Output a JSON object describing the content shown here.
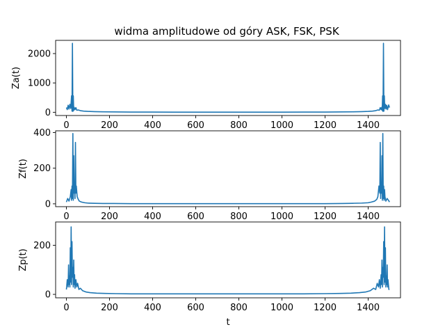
{
  "chart_data": {
    "type": "line",
    "title": "widma amplitudowe od góry ASK, FSK, PSK",
    "xlabel": "t",
    "line_color": "#1f77b4",
    "subplots": [
      {
        "ylabel": "Za(t)",
        "xlim": [
          -50,
          1550
        ],
        "ylim": [
          -110,
          2450
        ],
        "xticks": [
          0,
          200,
          400,
          600,
          800,
          1000,
          1200,
          1400
        ],
        "yticks": [
          0,
          1000,
          2000
        ],
        "show_xtick_labels": true,
        "series": [
          {
            "x": [
              0,
              4,
              8,
              12,
              16,
              20,
              24,
              26,
              28,
              30,
              32,
              34,
              36,
              40,
              44,
              48,
              55,
              65,
              80,
              100,
              130,
              170,
              220,
              300,
              400,
              500,
              600,
              700,
              750,
              800,
              900,
              1000,
              1100,
              1200,
              1280,
              1330,
              1370,
              1400,
              1420,
              1435,
              1445,
              1452,
              1456,
              1460,
              1463,
              1465,
              1467,
              1469,
              1471,
              1473,
              1475,
              1477,
              1480,
              1483,
              1486,
              1490,
              1495,
              1499
            ],
            "y": [
              160,
              90,
              240,
              110,
              270,
              130,
              560,
              40,
              2350,
              30,
              560,
              60,
              170,
              90,
              160,
              70,
              80,
              55,
              40,
              30,
              22,
              16,
              12,
              8,
              6,
              5,
              5,
              5,
              5,
              5,
              5,
              5,
              6,
              8,
              12,
              16,
              22,
              30,
              40,
              55,
              80,
              70,
              160,
              90,
              170,
              60,
              560,
              30,
              2350,
              40,
              560,
              130,
              270,
              110,
              240,
              90,
              250,
              160
            ]
          }
        ]
      },
      {
        "ylabel": "Zf(t)",
        "xlim": [
          -50,
          1550
        ],
        "ylim": [
          -16,
          410
        ],
        "xticks": [
          0,
          200,
          400,
          600,
          800,
          1000,
          1200,
          1400
        ],
        "yticks": [
          0,
          200,
          400
        ],
        "show_xtick_labels": true,
        "series": [
          {
            "x": [
              0,
              6,
              12,
              18,
              22,
              24,
              26,
              28,
              30,
              32,
              34,
              36,
              38,
              40,
              42,
              44,
              46,
              50,
              55,
              60,
              70,
              85,
              100,
              130,
              170,
              220,
              300,
              400,
              500,
              600,
              700,
              750,
              800,
              900,
              1000,
              1100,
              1200,
              1280,
              1330,
              1370,
              1400,
              1415,
              1430,
              1440,
              1445,
              1450,
              1454,
              1456,
              1458,
              1460,
              1462,
              1464,
              1466,
              1468,
              1470,
              1472,
              1474,
              1476,
              1478,
              1482,
              1488,
              1494,
              1499
            ],
            "y": [
              10,
              30,
              15,
              40,
              80,
              20,
              100,
              30,
              395,
              20,
              270,
              60,
              120,
              30,
              345,
              60,
              100,
              40,
              25,
              15,
              10,
              6,
              4,
              3,
              2,
              2,
              1,
              1,
              1,
              1,
              1,
              1,
              1,
              1,
              1,
              1,
              1,
              2,
              3,
              4,
              6,
              10,
              15,
              25,
              40,
              100,
              60,
              345,
              30,
              120,
              60,
              270,
              20,
              395,
              30,
              100,
              20,
              80,
              40,
              15,
              30,
              20,
              10
            ]
          }
        ]
      },
      {
        "ylabel": "Zp(t)",
        "xlim": [
          -50,
          1550
        ],
        "ylim": [
          -14,
          295
        ],
        "xticks": [
          0,
          200,
          400,
          600,
          800,
          1000,
          1200,
          1400
        ],
        "yticks": [
          0,
          200
        ],
        "show_xtick_labels": true,
        "series": [
          {
            "x": [
              0,
              4,
              8,
              10,
              12,
              14,
              16,
              18,
              20,
              22,
              24,
              26,
              28,
              30,
              32,
              34,
              36,
              38,
              40,
              44,
              48,
              52,
              58,
              65,
              75,
              90,
              110,
              140,
              180,
              230,
              300,
              400,
              500,
              600,
              700,
              750,
              800,
              900,
              1000,
              1100,
              1200,
              1270,
              1320,
              1360,
              1390,
              1410,
              1425,
              1435,
              1442,
              1448,
              1452,
              1456,
              1460,
              1462,
              1464,
              1466,
              1468,
              1470,
              1472,
              1474,
              1476,
              1478,
              1480,
              1482,
              1484,
              1486,
              1488,
              1490,
              1492,
              1496,
              1499
            ],
            "y": [
              20,
              60,
              30,
              120,
              40,
              75,
              30,
              190,
              50,
              275,
              40,
              215,
              70,
              110,
              30,
              140,
              40,
              80,
              25,
              60,
              30,
              45,
              20,
              25,
              15,
              10,
              7,
              5,
              4,
              3,
              2,
              2,
              2,
              2,
              2,
              2,
              2,
              2,
              2,
              2,
              3,
              4,
              5,
              7,
              10,
              15,
              25,
              20,
              45,
              30,
              60,
              25,
              80,
              40,
              140,
              30,
              110,
              70,
              215,
              40,
              275,
              50,
              190,
              30,
              75,
              40,
              120,
              30,
              60,
              20,
              20
            ]
          }
        ]
      }
    ]
  }
}
